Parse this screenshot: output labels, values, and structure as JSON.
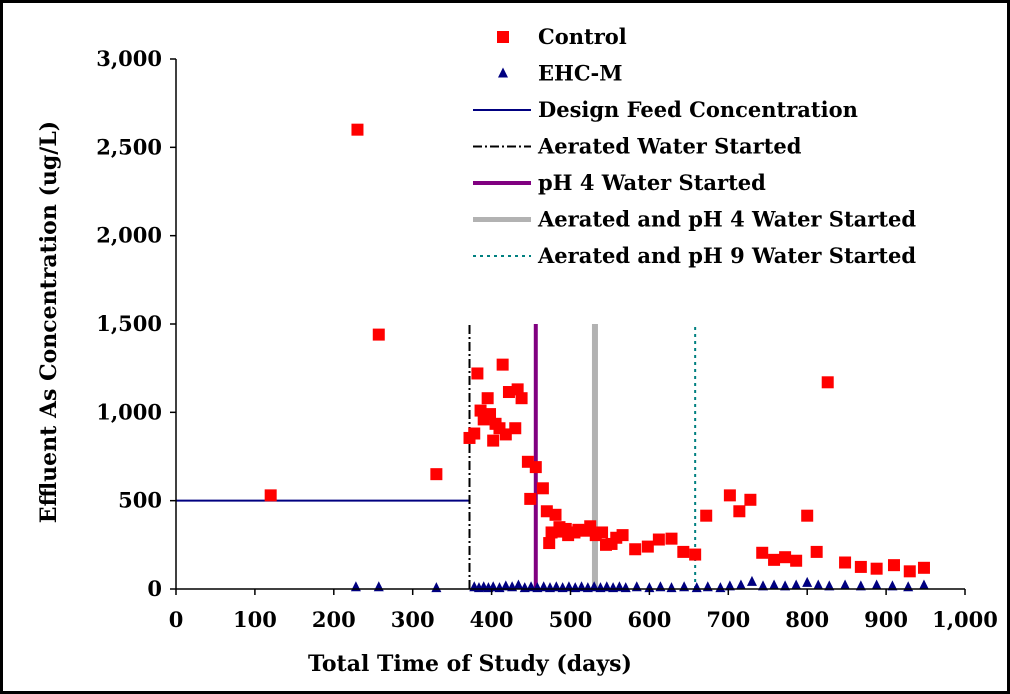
{
  "chart_data": {
    "type": "scatter",
    "title": "",
    "xlabel": "Total Time of Study (days)",
    "ylabel": "Effluent As Concentration (ug/L)",
    "xlim": [
      0,
      1000
    ],
    "ylim": [
      0,
      3000
    ],
    "x_ticks": [
      "0",
      "100",
      "200",
      "300",
      "400",
      "500",
      "600",
      "700",
      "800",
      "900",
      "1,000"
    ],
    "y_ticks": [
      "0",
      "500",
      "1,000",
      "1,500",
      "2,000",
      "2,500",
      "3,000"
    ],
    "grid": false,
    "legend_position": "top-right",
    "series": [
      {
        "name": "Control",
        "marker": "square",
        "color": "#ff0000",
        "points": [
          [
            120,
            530
          ],
          [
            230,
            2600
          ],
          [
            257,
            1440
          ],
          [
            330,
            650
          ],
          [
            372,
            855
          ],
          [
            378,
            880
          ],
          [
            382,
            1220
          ],
          [
            386,
            1010
          ],
          [
            390,
            960
          ],
          [
            395,
            1080
          ],
          [
            398,
            990
          ],
          [
            402,
            840
          ],
          [
            405,
            935
          ],
          [
            410,
            910
          ],
          [
            414,
            1270
          ],
          [
            418,
            875
          ],
          [
            422,
            1115
          ],
          [
            430,
            910
          ],
          [
            433,
            1130
          ],
          [
            438,
            1080
          ],
          [
            446,
            720
          ],
          [
            449,
            510
          ],
          [
            456,
            690
          ],
          [
            465,
            570
          ],
          [
            470,
            440
          ],
          [
            473,
            260
          ],
          [
            476,
            320
          ],
          [
            481,
            420
          ],
          [
            486,
            350
          ],
          [
            490,
            325
          ],
          [
            494,
            340
          ],
          [
            497,
            305
          ],
          [
            505,
            320
          ],
          [
            510,
            335
          ],
          [
            518,
            330
          ],
          [
            525,
            355
          ],
          [
            532,
            305
          ],
          [
            540,
            320
          ],
          [
            545,
            250
          ],
          [
            552,
            255
          ],
          [
            558,
            290
          ],
          [
            566,
            305
          ],
          [
            582,
            225
          ],
          [
            598,
            240
          ],
          [
            612,
            280
          ],
          [
            628,
            285
          ],
          [
            643,
            210
          ],
          [
            658,
            195
          ],
          [
            672,
            415
          ],
          [
            702,
            530
          ],
          [
            714,
            440
          ],
          [
            728,
            505
          ],
          [
            743,
            205
          ],
          [
            758,
            165
          ],
          [
            772,
            180
          ],
          [
            786,
            160
          ],
          [
            800,
            415
          ],
          [
            812,
            210
          ],
          [
            826,
            1170
          ],
          [
            848,
            150
          ],
          [
            868,
            125
          ],
          [
            888,
            115
          ],
          [
            910,
            135
          ],
          [
            930,
            100
          ],
          [
            948,
            120
          ]
        ]
      },
      {
        "name": "EHC-M",
        "marker": "triangle",
        "color": "#000080",
        "points": [
          [
            228,
            10
          ],
          [
            257,
            10
          ],
          [
            330,
            5
          ],
          [
            378,
            10
          ],
          [
            384,
            5
          ],
          [
            390,
            10
          ],
          [
            396,
            5
          ],
          [
            402,
            10
          ],
          [
            410,
            5
          ],
          [
            418,
            15
          ],
          [
            426,
            10
          ],
          [
            434,
            20
          ],
          [
            442,
            5
          ],
          [
            450,
            10
          ],
          [
            458,
            5
          ],
          [
            466,
            10
          ],
          [
            474,
            5
          ],
          [
            482,
            10
          ],
          [
            490,
            5
          ],
          [
            498,
            10
          ],
          [
            506,
            5
          ],
          [
            514,
            10
          ],
          [
            522,
            5
          ],
          [
            530,
            10
          ],
          [
            538,
            5
          ],
          [
            546,
            10
          ],
          [
            554,
            5
          ],
          [
            562,
            10
          ],
          [
            570,
            5
          ],
          [
            584,
            10
          ],
          [
            600,
            5
          ],
          [
            614,
            10
          ],
          [
            628,
            5
          ],
          [
            644,
            10
          ],
          [
            660,
            5
          ],
          [
            674,
            10
          ],
          [
            690,
            5
          ],
          [
            702,
            15
          ],
          [
            716,
            20
          ],
          [
            730,
            40
          ],
          [
            744,
            15
          ],
          [
            758,
            20
          ],
          [
            772,
            15
          ],
          [
            786,
            20
          ],
          [
            800,
            35
          ],
          [
            814,
            20
          ],
          [
            828,
            15
          ],
          [
            848,
            20
          ],
          [
            868,
            15
          ],
          [
            888,
            20
          ],
          [
            908,
            15
          ],
          [
            928,
            10
          ],
          [
            948,
            20
          ]
        ]
      }
    ],
    "reference_lines": [
      {
        "name": "Design Feed Concentration",
        "kind": "horizontal",
        "y": 500,
        "x_from": 0,
        "x_to": 372,
        "color": "#000080",
        "style": "solid"
      },
      {
        "name": "Aerated Water Started",
        "kind": "vertical",
        "x": 372,
        "y_from": 0,
        "y_to": 1500,
        "color": "#000000",
        "style": "dash-dot"
      },
      {
        "name": "pH 4 Water Started",
        "kind": "vertical",
        "x": 456,
        "y_from": 0,
        "y_to": 1500,
        "color": "#800080",
        "style": "solid-thick"
      },
      {
        "name": "Aerated and pH 4 Water Started",
        "kind": "vertical",
        "x": 531,
        "y_from": 0,
        "y_to": 1500,
        "color": "#b2b2b2",
        "style": "solid-wide"
      },
      {
        "name": "Aerated and pH 9 Water Started",
        "kind": "vertical",
        "x": 658,
        "y_from": 0,
        "y_to": 1500,
        "color": "#008080",
        "style": "dotted"
      }
    ]
  }
}
